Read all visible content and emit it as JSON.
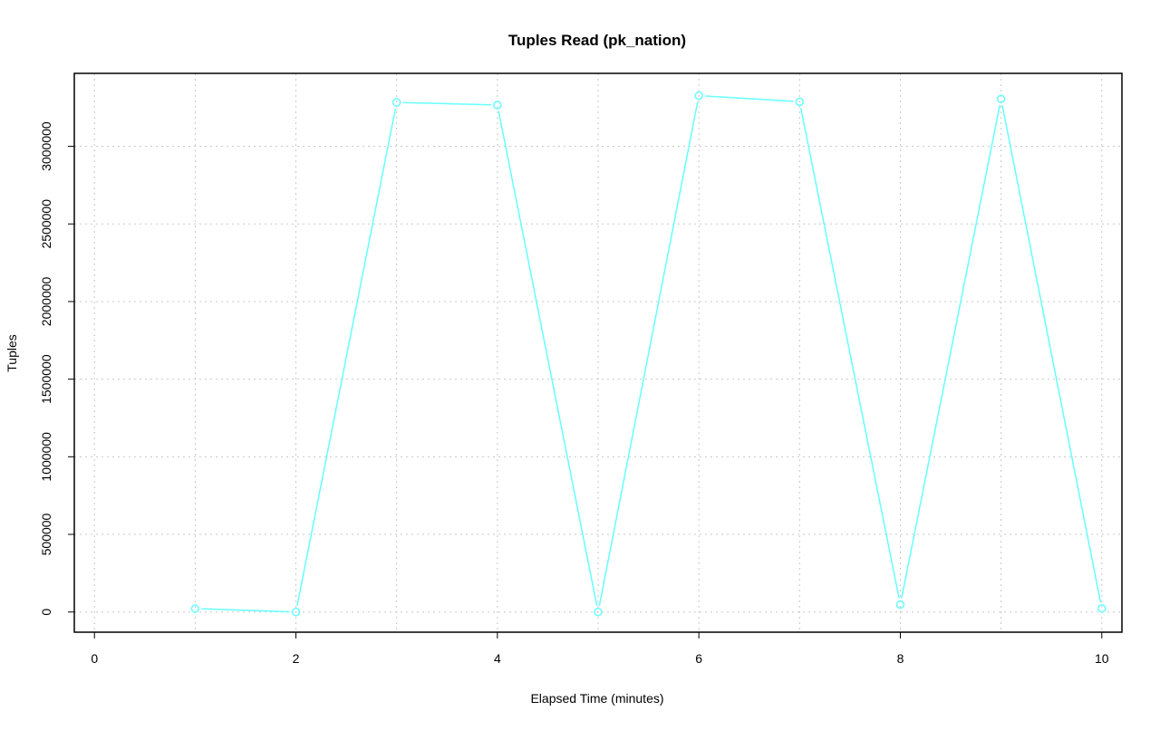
{
  "chart_data": {
    "type": "line",
    "title": "Tuples Read (pk_nation)",
    "xlabel": "Elapsed Time (minutes)",
    "ylabel": "Tuples",
    "xlim": [
      -0.2,
      10.2
    ],
    "ylim": [
      -130000,
      3470000
    ],
    "x_ticks": [
      0,
      2,
      4,
      6,
      8,
      10
    ],
    "y_ticks": [
      0,
      500000,
      1000000,
      1500000,
      2000000,
      2500000,
      3000000
    ],
    "x_grid": [
      0,
      1,
      2,
      3,
      4,
      5,
      6,
      7,
      8,
      9,
      10
    ],
    "grid": true,
    "markers": "open-circle",
    "series": [
      {
        "color": "#66ffff",
        "x": [
          1,
          2,
          3,
          4,
          5,
          6,
          7,
          8,
          9,
          10
        ],
        "y": [
          22000,
          0,
          3283000,
          3266000,
          0,
          3327000,
          3287000,
          48000,
          3305000,
          23000
        ]
      }
    ]
  }
}
